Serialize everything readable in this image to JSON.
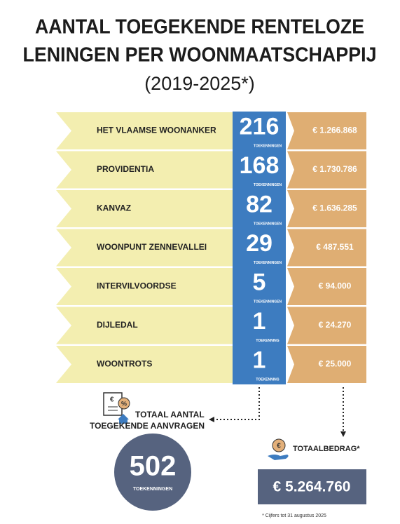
{
  "header": {
    "title_line_1": "AANTAL TOEGEKENDE RENTELOZE",
    "title_line_2": "LENINGEN PER WOONMAATSCHAPPIJ",
    "subtitle": "(2019-2025*)"
  },
  "rows": [
    {
      "name": "HET VLAAMSE WOONANKER",
      "count": 216,
      "count_label": "TOEKENNINGEN",
      "amount": "€ 1.266.868"
    },
    {
      "name": "PROVIDENTIA",
      "count": 168,
      "count_label": "TOEKENNINGEN",
      "amount": "€ 1.730.786"
    },
    {
      "name": "KANVAZ",
      "count": 82,
      "count_label": "TOEKENNINGEN",
      "amount": "€ 1.636.285"
    },
    {
      "name": "WOONPUNT ZENNEVALLEI",
      "count": 29,
      "count_label": "TOEKENNINGEN",
      "amount": "€ 487.551"
    },
    {
      "name": "INTERVILVOORDSE",
      "count": 5,
      "count_label": "TOEKENNINGEN",
      "amount": "€ 94.000"
    },
    {
      "name": "DIJLEDAL",
      "count": 1,
      "count_label": "TOEKENNING",
      "amount": "€ 24.270"
    },
    {
      "name": "WOONTROTS",
      "count": 1,
      "count_label": "TOEKENNING",
      "amount": "€ 25.000"
    }
  ],
  "totals": {
    "requests_title_1": "TOTAAL AANTAL",
    "requests_title_2": "TOEGEKENDE AANVRAGEN",
    "requests": 502,
    "requests_label": "TOEKENNINGEN",
    "amount_title": "TOTAALBEDRAG*",
    "amount": "€ 5.264.760"
  },
  "footnote": "* Cijfers tot 31 augustus 2025"
}
